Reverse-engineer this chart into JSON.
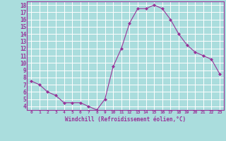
{
  "x": [
    0,
    1,
    2,
    3,
    4,
    5,
    6,
    7,
    8,
    9,
    10,
    11,
    12,
    13,
    14,
    15,
    16,
    17,
    18,
    19,
    20,
    21,
    22,
    23
  ],
  "y": [
    7.5,
    7.0,
    6.0,
    5.5,
    4.5,
    4.5,
    4.5,
    4.0,
    3.5,
    5.0,
    9.5,
    12.0,
    15.5,
    17.5,
    17.5,
    18.0,
    17.5,
    16.0,
    14.0,
    12.5,
    11.5,
    11.0,
    10.5,
    8.5
  ],
  "line_color": "#993399",
  "marker": "D",
  "marker_size": 2,
  "bg_color": "#aadddd",
  "grid_color": "#ffffff",
  "xlabel": "Windchill (Refroidissement éolien,°C)",
  "xlabel_color": "#993399",
  "tick_color": "#993399",
  "ylim": [
    3.5,
    18.5
  ],
  "xlim": [
    -0.5,
    23.5
  ],
  "yticks": [
    4,
    5,
    6,
    7,
    8,
    9,
    10,
    11,
    12,
    13,
    14,
    15,
    16,
    17,
    18
  ],
  "xticks": [
    0,
    1,
    2,
    3,
    4,
    5,
    6,
    7,
    8,
    9,
    10,
    11,
    12,
    13,
    14,
    15,
    16,
    17,
    18,
    19,
    20,
    21,
    22,
    23
  ],
  "figsize": [
    3.2,
    2.0
  ],
  "dpi": 100
}
